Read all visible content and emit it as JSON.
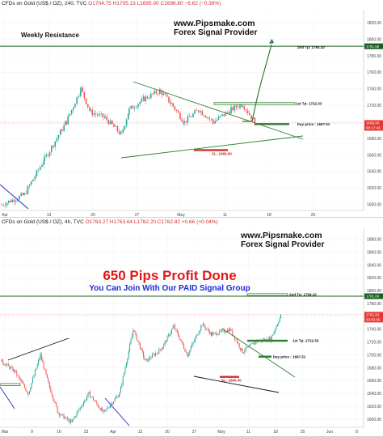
{
  "colors": {
    "up": "#26a69a",
    "down": "#ef5350",
    "trend": "#2e7d32",
    "resistance": "#1b5e20",
    "stoploss": "#d32f2f",
    "blueline": "#1a2ad6",
    "tag_red": "#e53935"
  },
  "top": {
    "symbol": "CFDs on Gold (US$ / OZ)",
    "interval": "240",
    "source": "TVC",
    "ohlc": "O1704.75 H1705.13 L1695.00 C1698.80 −6.62 (−0.39%)",
    "website": "www.Pipsmake.com",
    "provider": "Forex Signal Provider",
    "weekly_resistance": "Weekly Resistance",
    "price_tags": [
      "1791.66",
      "1698.80",
      "00:17:43"
    ],
    "annotations": {
      "tp2": "2nd Tp: 1794.10",
      "tp1": "1st Tp: 1722.33",
      "buy": "buy price : 1697.51",
      "sl": "SL: 1666.00"
    }
  },
  "bottom": {
    "symbol": "CFDs on Gold (US$ / OZ)",
    "interval": "4h",
    "source": "TVC",
    "ohlc": "O1763.27 H1763.64 L1762.20 C1762.82 +0.66 (+0.04%)",
    "website": "www.Pipsmake.com",
    "provider": "Forex Signal Provider",
    "headline": "650 Pips Profit Done",
    "subheadline": "You Can Join With Our PAID Signal Group",
    "price_tags": [
      "1791.66",
      "1762.82",
      "03:55:55"
    ],
    "annotations": {
      "tp2": "2nd Tp: 1794.10",
      "tp1": "1st Tp: 1722.33",
      "buy": "buy price : 1697.51",
      "sl": "SL: 1666.00"
    }
  },
  "chart_data": [
    {
      "type": "line",
      "title": "CFDs on Gold (US$ / OZ), 240, TVC",
      "ylim": [
        1595,
        1830
      ],
      "y_ticks": [
        1820,
        1800,
        1780,
        1760,
        1740,
        1720,
        1700,
        1680,
        1660,
        1640,
        1620,
        1600
      ],
      "x_tick_labels": [
        "Apr",
        "13",
        "20",
        "27",
        "May",
        "11",
        "18",
        "25"
      ],
      "series": [
        {
          "name": "",
          "x": [
            "Apr",
            "13",
            "20",
            "27",
            "May",
            "11"
          ],
          "values": [
            1605,
            1700,
            1735,
            1720,
            1705,
            1698.8
          ]
        }
      ],
      "levels": {
        "weekly_resistance": 1791.66,
        "tp2": 1794.1,
        "tp1": 1722.33,
        "buy": 1697.51,
        "sl": 1666.0
      }
    },
    {
      "type": "line",
      "title": "CFDs on Gold (US$ / OZ), 4h, TVC",
      "ylim": [
        1590,
        1890
      ],
      "y_ticks": [
        1880,
        1860,
        1840,
        1820,
        1800,
        1780,
        1760,
        1740,
        1720,
        1700,
        1680,
        1660,
        1640,
        1620,
        1600
      ],
      "x_tick_labels": [
        "Mar",
        "9",
        "16",
        "23",
        "Apr",
        "13",
        "20",
        "27",
        "May",
        "11",
        "18",
        "25",
        "Jun",
        "8"
      ],
      "series": [
        {
          "name": "",
          "x": [
            "Mar",
            "16",
            "Apr",
            "20",
            "May",
            "18"
          ],
          "values": [
            1660,
            1600,
            1660,
            1735,
            1700,
            1762.82
          ]
        }
      ],
      "levels": {
        "tp2": 1794.1,
        "tp1": 1722.33,
        "buy": 1697.51,
        "sl": 1666.0
      }
    }
  ]
}
